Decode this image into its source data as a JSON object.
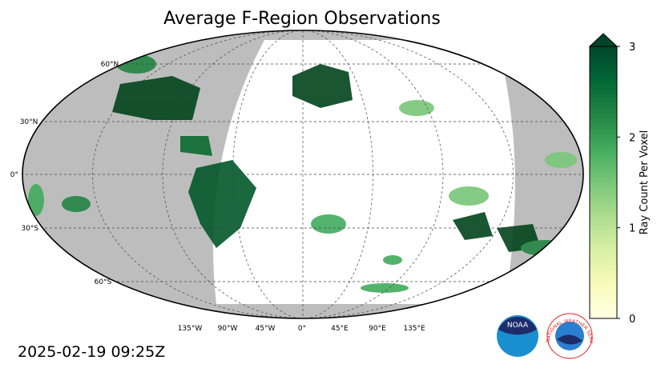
{
  "title": "Average F-Region Observations",
  "lat_labels": [
    "60°N",
    "30°N",
    "0°",
    "30°S",
    "60°S"
  ],
  "lon_labels": [
    "135°W",
    "90°W",
    "45°W",
    "0°",
    "45°E",
    "90°E",
    "135°E"
  ],
  "colorbar": {
    "label": "Ray Count Per Voxel",
    "lim": [
      0,
      3
    ],
    "ticks": [
      0,
      1,
      2,
      3
    ],
    "colors": [
      "#ffffe5",
      "#f7fcb9",
      "#d9f0a3",
      "#addd8e",
      "#78c679",
      "#41ab5d",
      "#238443",
      "#006837",
      "#004529"
    ]
  },
  "timestamp": "2025-02-19 09:25Z",
  "noaa_logo": "NOAA",
  "nws_logo": "NATIONAL WEATHER SERVICE"
}
